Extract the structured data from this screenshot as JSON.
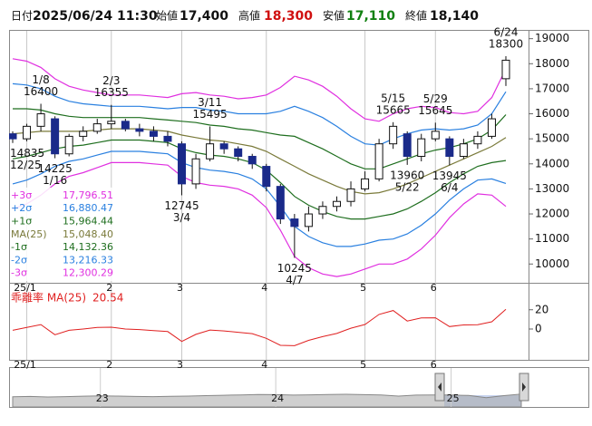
{
  "header": {
    "fields": [
      {
        "label": "日付",
        "value": "2025/06/24 11:30",
        "color": "#111111"
      },
      {
        "label": "始値",
        "value": "17,400",
        "color": "#111111"
      },
      {
        "label": "高値",
        "value": "18,300",
        "color": "#d01010"
      },
      {
        "label": "安値",
        "value": "17,110",
        "color": "#108010"
      },
      {
        "label": "終値",
        "value": "18,140",
        "color": "#111111"
      }
    ]
  },
  "chart_data": [
    {
      "type": "candlestick",
      "categories": [
        null,
        "25/1",
        null,
        null,
        null,
        null,
        null,
        "2",
        null,
        null,
        null,
        null,
        "3",
        null,
        null,
        null,
        null,
        null,
        "4",
        null,
        null,
        null,
        null,
        null,
        null,
        "5",
        null,
        null,
        null,
        null,
        "6",
        null,
        null,
        null,
        null,
        null
      ],
      "open": [
        15200,
        15000,
        15500,
        15800,
        14400,
        15100,
        15300,
        15600,
        15700,
        15400,
        15300,
        15100,
        14800,
        13200,
        14200,
        14800,
        14600,
        14300,
        13900,
        13100,
        11800,
        11500,
        12000,
        12300,
        12500,
        13000,
        13400,
        14800,
        15200,
        14300,
        15000,
        15000,
        14300,
        14800,
        15100,
        17400
      ],
      "high": [
        15300,
        15600,
        16400,
        15900,
        15200,
        15500,
        15800,
        16355,
        15800,
        15600,
        15500,
        15300,
        14900,
        14400,
        15495,
        14900,
        14700,
        14400,
        14000,
        13200,
        12000,
        12300,
        12500,
        12700,
        13300,
        13700,
        15000,
        15665,
        15300,
        15200,
        15645,
        15100,
        15000,
        15300,
        16000,
        18300
      ],
      "low": [
        14835,
        14900,
        15300,
        14225,
        14300,
        14900,
        15200,
        15400,
        15300,
        15100,
        14900,
        14700,
        12745,
        13000,
        14100,
        14400,
        14100,
        13800,
        12900,
        11600,
        10245,
        11300,
        11800,
        12100,
        12300,
        12900,
        13300,
        14600,
        13960,
        14100,
        14900,
        13945,
        14200,
        14600,
        15000,
        17110
      ],
      "close": [
        15000,
        15500,
        16000,
        14400,
        15100,
        15300,
        15600,
        15700,
        15400,
        15300,
        15100,
        14900,
        13200,
        14200,
        14800,
        14600,
        14300,
        14000,
        13100,
        11800,
        11500,
        12000,
        12300,
        12500,
        13000,
        13400,
        14800,
        15500,
        14300,
        15000,
        15300,
        14300,
        14800,
        15100,
        15800,
        18140
      ],
      "up_color": "#ffffff",
      "down_color": "#1a2a8a",
      "series": [
        {
          "name": "+3σ",
          "color": "#e030e0",
          "last_label": "17,796.51",
          "values": [
            18200,
            18100,
            17850,
            17400,
            17100,
            16950,
            16850,
            16750,
            16750,
            16750,
            16700,
            16650,
            16800,
            16850,
            16750,
            16700,
            16600,
            16650,
            16750,
            17050,
            17500,
            17350,
            17100,
            16700,
            16200,
            15800,
            15700,
            16000,
            16200,
            16300,
            16250,
            16050,
            16000,
            16100,
            16650,
            17796.51
          ]
        },
        {
          "name": "+2σ",
          "color": "#2a80e0",
          "last_label": "16,880.47",
          "values": [
            17200,
            17150,
            17000,
            16700,
            16500,
            16400,
            16350,
            16300,
            16300,
            16300,
            16250,
            16200,
            16250,
            16250,
            16150,
            16100,
            16000,
            16000,
            16000,
            16100,
            16300,
            16100,
            15850,
            15500,
            15100,
            14800,
            14750,
            15000,
            15200,
            15350,
            15400,
            15350,
            15400,
            15550,
            16000,
            16880.47
          ]
        },
        {
          "name": "+1σ",
          "color": "#1e6e1e",
          "last_label": "15,964.44",
          "values": [
            16200,
            16200,
            16150,
            16000,
            15900,
            15850,
            15850,
            15850,
            15850,
            15850,
            15800,
            15750,
            15700,
            15650,
            15550,
            15500,
            15400,
            15350,
            15250,
            15150,
            15100,
            14850,
            14600,
            14300,
            14000,
            13800,
            13800,
            14000,
            14200,
            14400,
            14550,
            14650,
            14800,
            15000,
            15350,
            15964.44
          ]
        },
        {
          "name": "MA(25)",
          "color": "#7a7a3a",
          "last_label": "15,048.40",
          "values": [
            15200,
            15250,
            15300,
            15300,
            15300,
            15300,
            15350,
            15400,
            15400,
            15400,
            15350,
            15300,
            15150,
            15050,
            14950,
            14900,
            14800,
            14700,
            14500,
            14200,
            13900,
            13600,
            13350,
            13100,
            12900,
            12800,
            12850,
            13000,
            13200,
            13450,
            13700,
            13950,
            14200,
            14450,
            14700,
            15048.4
          ]
        },
        {
          "name": "-1σ",
          "color": "#1e6e1e",
          "last_label": "14,132.36",
          "values": [
            14200,
            14300,
            14450,
            14600,
            14700,
            14750,
            14850,
            14950,
            14950,
            14950,
            14900,
            14850,
            14600,
            14450,
            14350,
            14300,
            14200,
            14050,
            13750,
            13250,
            12700,
            12350,
            12100,
            11900,
            11800,
            11800,
            11900,
            12000,
            12200,
            12500,
            12850,
            13250,
            13600,
            13900,
            14050,
            14132.36
          ]
        },
        {
          "name": "-2σ",
          "color": "#2a80e0",
          "last_label": "13,216.33",
          "values": [
            13200,
            13350,
            13600,
            13900,
            14100,
            14200,
            14350,
            14500,
            14500,
            14500,
            14450,
            14400,
            14050,
            13850,
            13750,
            13700,
            13600,
            13400,
            13000,
            12300,
            11500,
            11100,
            10850,
            10700,
            10700,
            10800,
            10950,
            11000,
            11200,
            11550,
            12000,
            12550,
            13000,
            13350,
            13400,
            13216.33
          ]
        },
        {
          "name": "-3σ",
          "color": "#e030e0",
          "last_label": "12,300.29",
          "values": [
            12200,
            12400,
            12750,
            13200,
            13500,
            13650,
            13850,
            14050,
            14050,
            14050,
            14000,
            13950,
            13500,
            13250,
            13150,
            13100,
            13000,
            12750,
            12250,
            11350,
            10300,
            9850,
            9600,
            9500,
            9600,
            9800,
            10000,
            10000,
            10200,
            10600,
            11150,
            11850,
            12400,
            12800,
            12750,
            12300.29
          ]
        }
      ],
      "ylim": [
        9250,
        19350
      ],
      "yticks": [
        10000,
        11000,
        12000,
        13000,
        14000,
        15000,
        16000,
        17000,
        18000,
        19000
      ],
      "annotations": {
        "highs": [
          {
            "date": "1/8",
            "value": 16400
          },
          {
            "date": "2/3",
            "value": 16355
          },
          {
            "date": "3/11",
            "value": 15495
          },
          {
            "date": "5/15",
            "value": 15665
          },
          {
            "date": "5/29",
            "value": 15645
          },
          {
            "date": "6/24",
            "value": 18300
          }
        ],
        "lows": [
          {
            "date": "12/25",
            "value": 14835
          },
          {
            "date": "1/16",
            "value": 14225
          },
          {
            "date": "3/4",
            "value": 12745
          },
          {
            "date": "4/7",
            "value": 10245
          },
          {
            "date": "5/22",
            "value": 13960
          },
          {
            "date": "6/4",
            "value": 13945
          }
        ]
      },
      "legend": "lower left"
    },
    {
      "type": "line",
      "title": "乖離率 MA(25)",
      "color": "#e02020",
      "values": [
        -1.3,
        1.6,
        4.6,
        -5.9,
        -1.3,
        0,
        1.6,
        1.9,
        0,
        -0.6,
        -1.6,
        -2.6,
        -12.9,
        -5.6,
        -1,
        -2,
        -3.4,
        -4.8,
        -9.7,
        -16.9,
        -17.3,
        -11.8,
        -7.9,
        -4.6,
        0.8,
        4.7,
        15.2,
        19.2,
        8.3,
        11.5,
        11.7,
        2.5,
        4.2,
        4.5,
        7.5,
        20.54
      ],
      "value_labels": {
        "35": "20.54"
      },
      "ylim": [
        -32,
        48
      ],
      "yticks": [
        0,
        20
      ]
    },
    {
      "type": "area",
      "color": "#a8a8a8",
      "categories": [
        null,
        null,
        null,
        null,
        null,
        "23",
        null,
        null,
        null,
        null,
        null,
        null,
        null,
        null,
        null,
        "24",
        null,
        null,
        null,
        null,
        null,
        null,
        null,
        null,
        null,
        "25",
        null,
        null,
        null,
        null
      ],
      "values": [
        13000,
        13500,
        12800,
        13200,
        13800,
        14200,
        13900,
        13500,
        13200,
        13600,
        14000,
        14500,
        15000,
        15500,
        16000,
        15800,
        15200,
        15600,
        16000,
        16300,
        15800,
        15500,
        14000,
        15200,
        15400,
        15300,
        14800,
        12000,
        14500,
        16500
      ],
      "ylim": [
        0,
        50000
      ]
    }
  ]
}
